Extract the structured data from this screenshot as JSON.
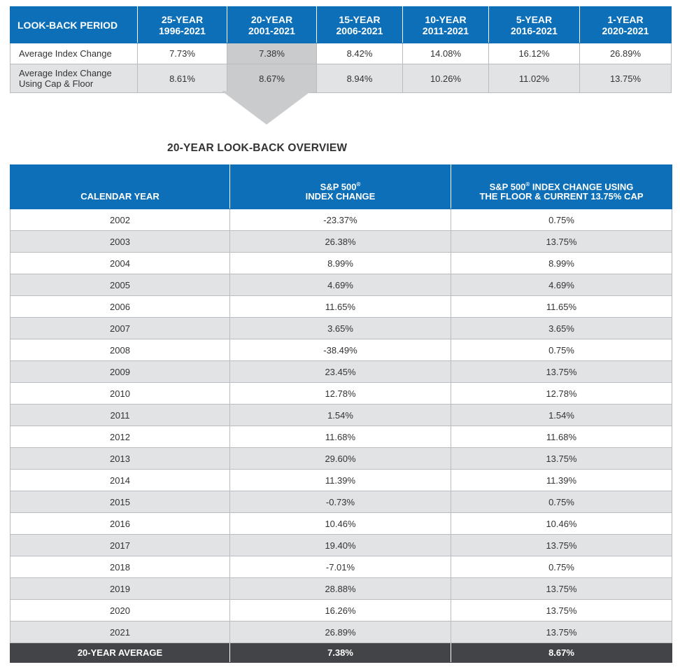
{
  "lookback": {
    "header_label": "LOOK-BACK PERIOD",
    "periods": [
      {
        "name": "25-YEAR",
        "range": "1996-2021"
      },
      {
        "name": "20-YEAR",
        "range": "2001-2021"
      },
      {
        "name": "15-YEAR",
        "range": "2006-2021"
      },
      {
        "name": "10-YEAR",
        "range": "2011-2021"
      },
      {
        "name": "5-YEAR",
        "range": "2016-2021"
      },
      {
        "name": "1-YEAR",
        "range": "2020-2021"
      }
    ],
    "rows": [
      {
        "label": "Average Index Change",
        "values": [
          "7.73%",
          "7.38%",
          "8.42%",
          "14.08%",
          "16.12%",
          "26.89%"
        ]
      },
      {
        "label_line1": "Average Index Change",
        "label_line2": "Using Cap & Floor",
        "values": [
          "8.61%",
          "8.67%",
          "8.94%",
          "10.26%",
          "11.02%",
          "13.75%"
        ]
      }
    ],
    "highlight_color": "#cacbcd"
  },
  "overview": {
    "title": "20-YEAR LOOK-BACK OVERVIEW",
    "col1": "CALENDAR YEAR",
    "col2_line1": "S&P 500",
    "col2_line2": "INDEX CHANGE",
    "col3_line1": "S&P 500",
    "col3_line1b": " INDEX CHANGE USING",
    "col3_line2": "THE FLOOR & CURRENT 13.75% CAP",
    "reg_mark": "®",
    "rows": [
      {
        "year": "2002",
        "change": "-23.37%",
        "capped": "0.75%"
      },
      {
        "year": "2003",
        "change": "26.38%",
        "capped": "13.75%"
      },
      {
        "year": "2004",
        "change": "8.99%",
        "capped": "8.99%"
      },
      {
        "year": "2005",
        "change": "4.69%",
        "capped": "4.69%"
      },
      {
        "year": "2006",
        "change": "11.65%",
        "capped": "11.65%"
      },
      {
        "year": "2007",
        "change": "3.65%",
        "capped": "3.65%"
      },
      {
        "year": "2008",
        "change": "-38.49%",
        "capped": "0.75%"
      },
      {
        "year": "2009",
        "change": "23.45%",
        "capped": "13.75%"
      },
      {
        "year": "2010",
        "change": "12.78%",
        "capped": "12.78%"
      },
      {
        "year": "2011",
        "change": "1.54%",
        "capped": "1.54%"
      },
      {
        "year": "2012",
        "change": "11.68%",
        "capped": "11.68%"
      },
      {
        "year": "2013",
        "change": "29.60%",
        "capped": "13.75%"
      },
      {
        "year": "2014",
        "change": "11.39%",
        "capped": "11.39%"
      },
      {
        "year": "2015",
        "change": "-0.73%",
        "capped": "0.75%"
      },
      {
        "year": "2016",
        "change": "10.46%",
        "capped": "10.46%"
      },
      {
        "year": "2017",
        "change": "19.40%",
        "capped": "13.75%"
      },
      {
        "year": "2018",
        "change": "-7.01%",
        "capped": "0.75%"
      },
      {
        "year": "2019",
        "change": "28.88%",
        "capped": "13.75%"
      },
      {
        "year": "2020",
        "change": "16.26%",
        "capped": "13.75%"
      },
      {
        "year": "2021",
        "change": "26.89%",
        "capped": "13.75%"
      }
    ],
    "footer": {
      "label": "20-YEAR AVERAGE",
      "change": "7.38%",
      "capped": "8.67%"
    }
  },
  "colors": {
    "header_blue": "#0c6fb7",
    "footer_dark": "#424448",
    "row_gray": "#e2e3e5"
  }
}
